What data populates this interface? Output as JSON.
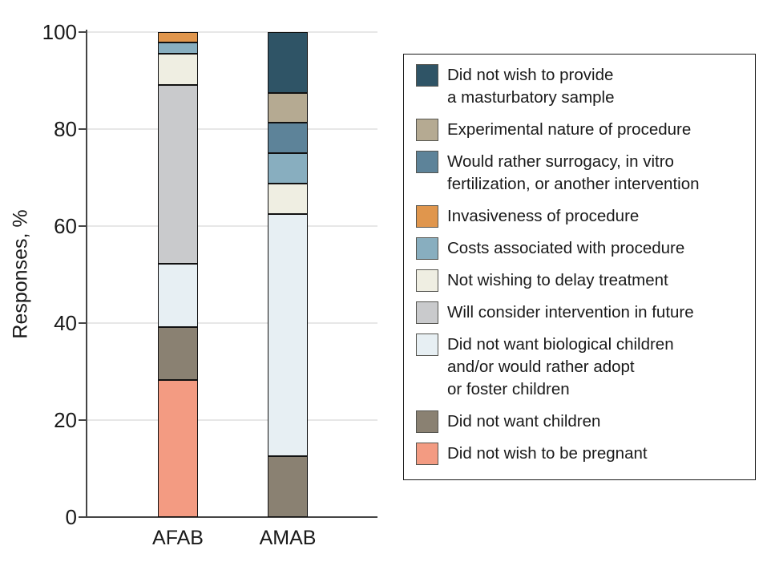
{
  "figure": {
    "background": "#ffffff"
  },
  "colors": {
    "gridline": "#e7e7e7",
    "axis": "#454545",
    "text": "#1a1a1a",
    "segment_border": "#111111",
    "legend_border": "#1a1a1a"
  },
  "chart_data": {
    "type": "bar",
    "variant": "stacked-vertical",
    "title": "",
    "xlabel": "",
    "ylabel": "Responses, %",
    "ylim": [
      0,
      100
    ],
    "yticks": [
      0,
      20,
      40,
      60,
      80,
      100
    ],
    "grid": "horizontal",
    "legend_position": "right",
    "legend_order": "top-of-stack-first",
    "categories": [
      "AFAB",
      "AMAB"
    ],
    "series": [
      {
        "name": "Did not wish to be pregnant",
        "color": "#F39B82",
        "values": [
          28.3,
          0
        ],
        "legend_lines": [
          "Did not wish to be pregnant"
        ]
      },
      {
        "name": "Did not want children",
        "color": "#8A8172",
        "values": [
          10.9,
          12.5
        ],
        "legend_lines": [
          "Did not want children"
        ]
      },
      {
        "name": "Did not want biological children and/or would rather adopt or foster children",
        "color": "#E7EFF3",
        "values": [
          13.0,
          50.0
        ],
        "legend_lines": [
          "Did not want biological children",
          "and/or would rather adopt",
          "or foster children"
        ]
      },
      {
        "name": "Will consider intervention in future",
        "color": "#C9CACC",
        "values": [
          36.9,
          0
        ],
        "legend_lines": [
          "Will consider intervention in future"
        ]
      },
      {
        "name": "Not wishing to delay treatment",
        "color": "#EFEEE2",
        "values": [
          6.5,
          6.25
        ],
        "legend_lines": [
          "Not wishing to delay treatment"
        ]
      },
      {
        "name": "Costs associated with procedure",
        "color": "#88AEBF",
        "values": [
          2.2,
          6.25
        ],
        "legend_lines": [
          "Costs associated with procedure"
        ]
      },
      {
        "name": "Invasiveness of procedure",
        "color": "#E0964D",
        "values": [
          2.2,
          0
        ],
        "legend_lines": [
          "Invasiveness of procedure"
        ]
      },
      {
        "name": "Would rather surrogacy, in vitro fertilization, or another intervention",
        "color": "#5D8399",
        "values": [
          0,
          6.25
        ],
        "legend_lines": [
          "Would rather surrogacy, in vitro",
          "fertilization, or another intervention"
        ]
      },
      {
        "name": "Experimental nature of procedure",
        "color": "#B5AA92",
        "values": [
          0,
          6.25
        ],
        "legend_lines": [
          "Experimental nature of procedure"
        ]
      },
      {
        "name": "Did not wish to provide a masturbatory sample",
        "color": "#2F5466",
        "values": [
          0,
          12.5
        ],
        "legend_lines": [
          "Did not wish to provide",
          "a masturbatory sample"
        ]
      }
    ]
  }
}
